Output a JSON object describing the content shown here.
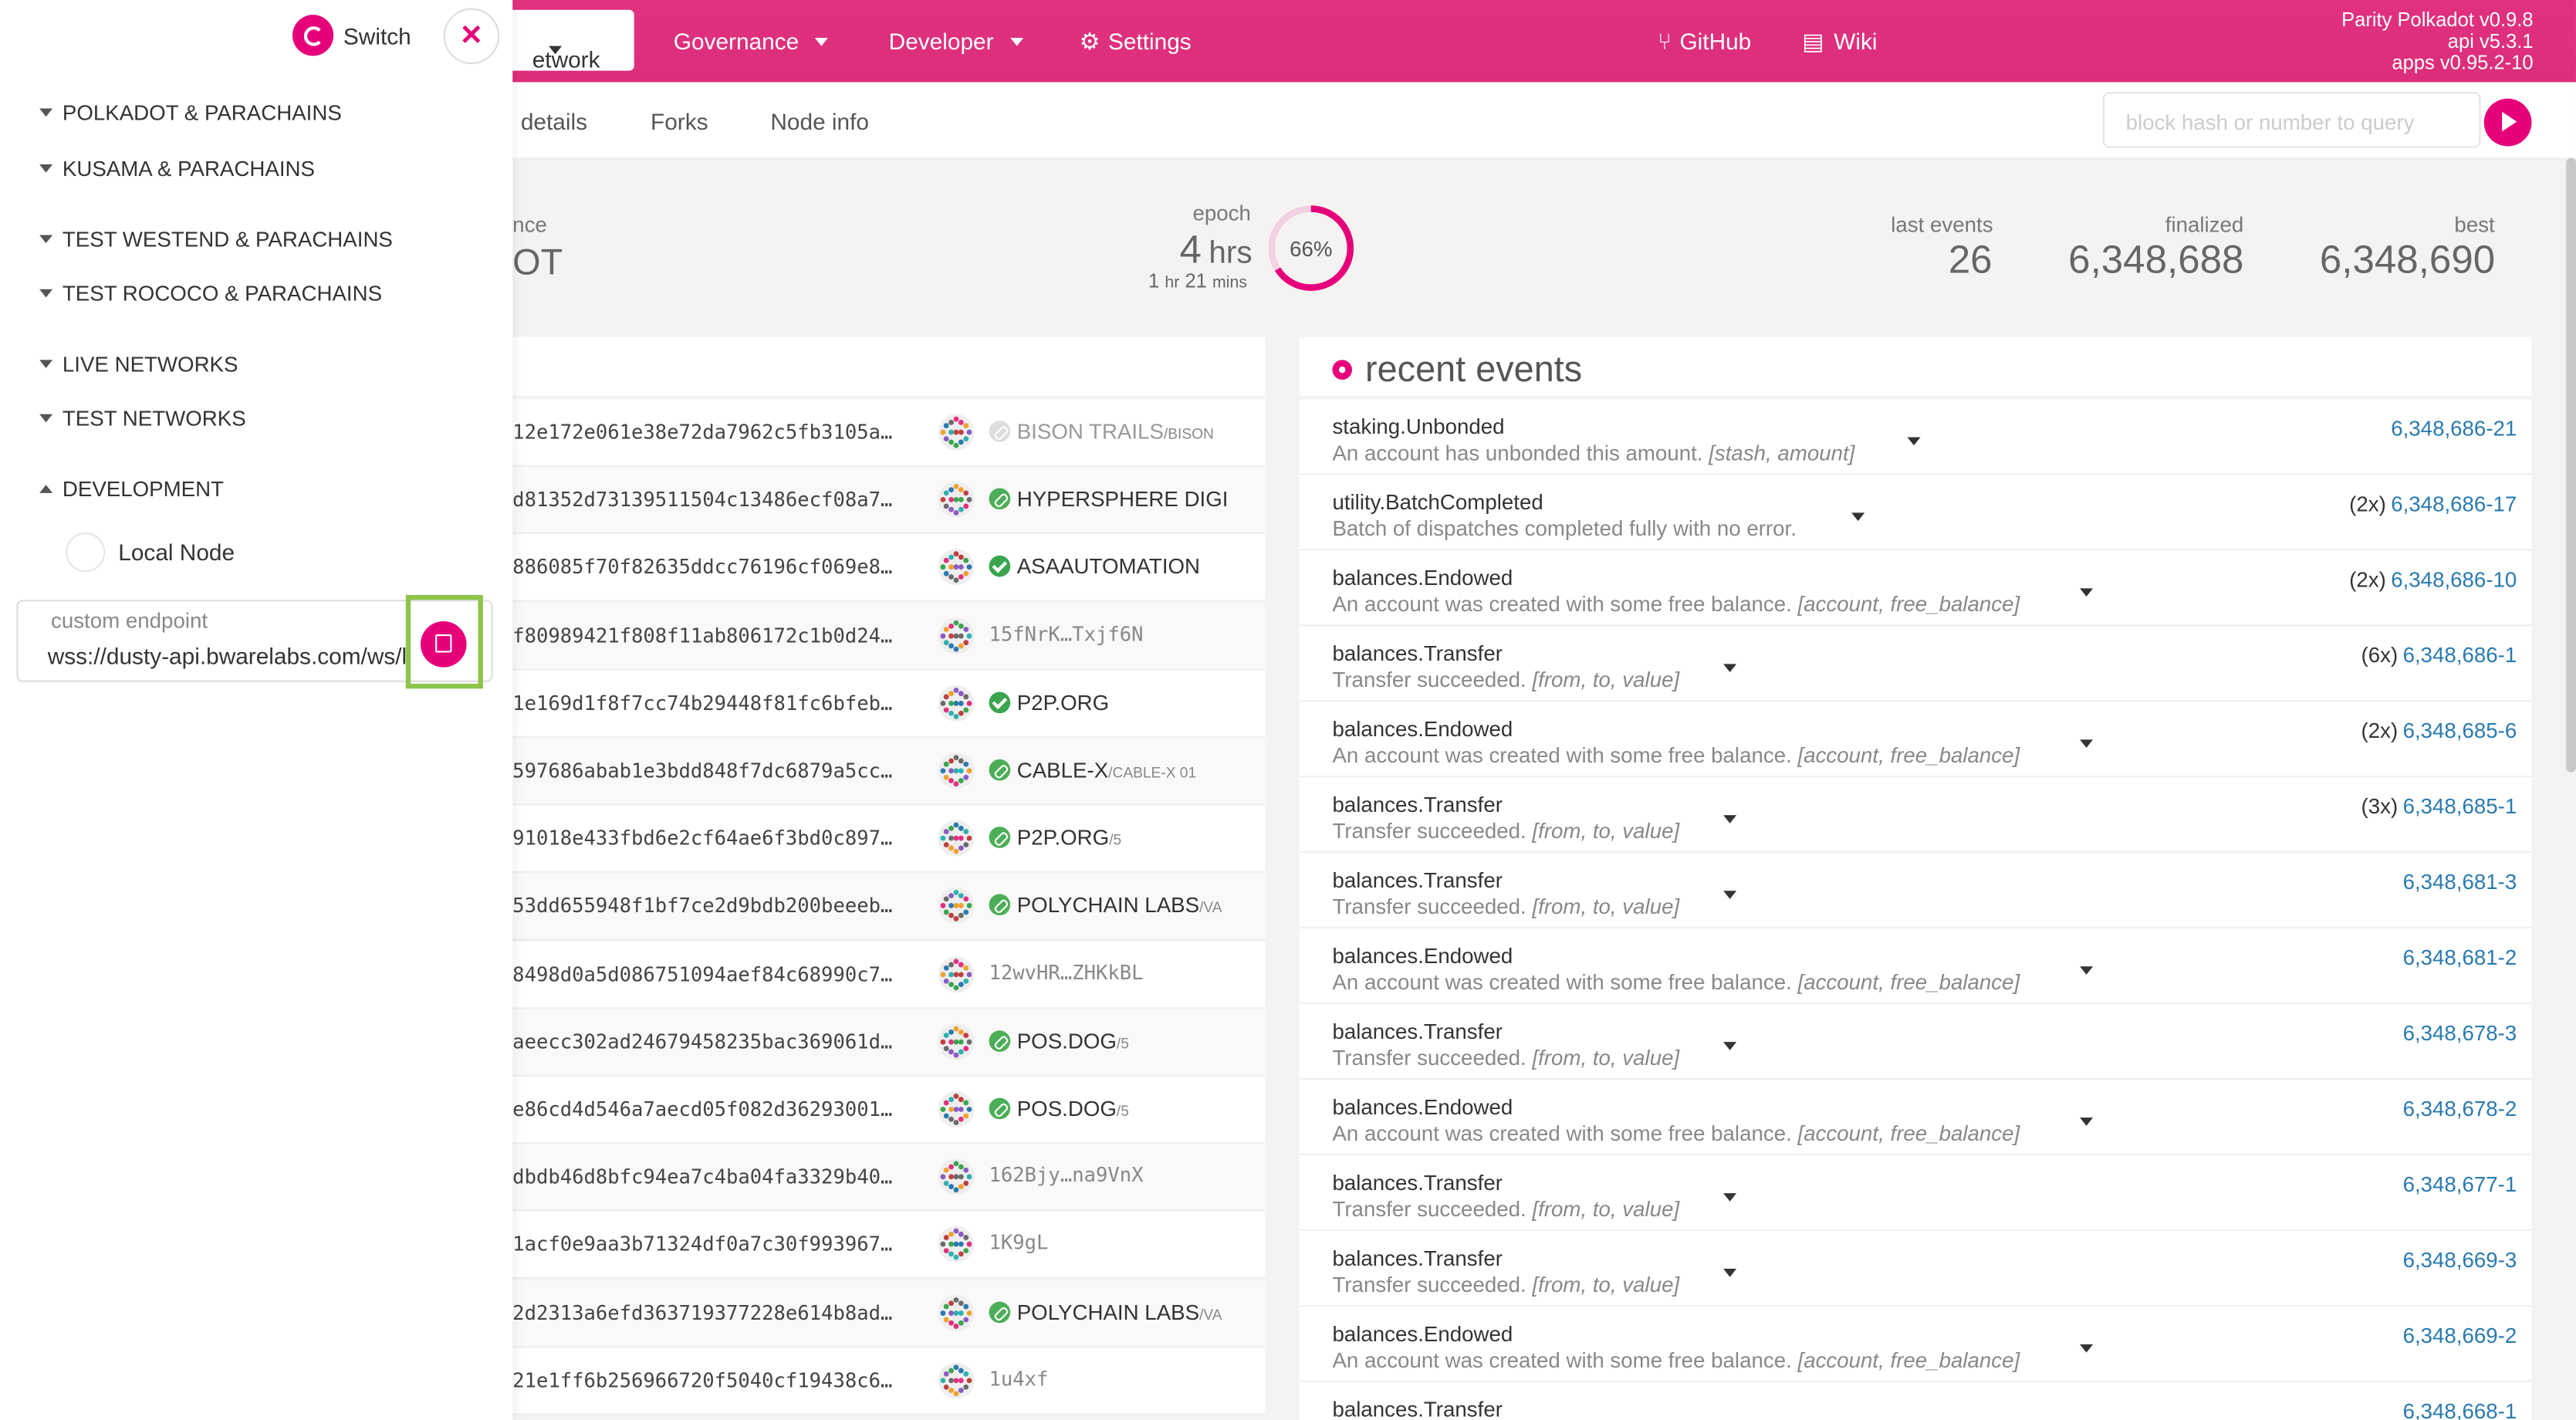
{
  "header": {
    "nav": [
      {
        "label": "etwork"
      },
      {
        "label": "Governance"
      },
      {
        "label": "Developer"
      },
      {
        "label": "Settings"
      },
      {
        "label": "GitHub"
      },
      {
        "label": "Wiki"
      }
    ],
    "version": [
      "Parity Polkadot v0.9.8",
      "api v5.3.1",
      "apps v0.95.2-10"
    ]
  },
  "subnav": {
    "tabs": [
      "details",
      "Forks",
      "Node info"
    ],
    "query_placeholder": "block hash or number to query"
  },
  "summary": {
    "left_label": "nce",
    "left_value": "OT",
    "epoch_label": "epoch",
    "epoch_value": "4",
    "epoch_unit": "hrs",
    "epoch_sub_1": "1",
    "epoch_sub_1u": "hr",
    "epoch_sub_2": "21",
    "epoch_sub_2u": "mins",
    "epoch_percent": 66,
    "epoch_percent_label": "66%",
    "last_events_label": "last events",
    "last_events_value": "26",
    "finalized_label": "finalized",
    "finalized_value": "6,348,688",
    "best_label": "best",
    "best_value": "6,348,690"
  },
  "blocks": [
    {
      "hash": "12e172e061e38e72da7962c5fb3105a…",
      "author": "BISON TRAILS",
      "sub": "/BISON",
      "ident": "grey"
    },
    {
      "hash": "d81352d73139511504c13486ecf08a7…",
      "author": "HYPERSPHERE DIGI",
      "sub": "",
      "ident": "link"
    },
    {
      "hash": "886085f70f82635ddcc76196cf069e8…",
      "author": "ASAAUTOMATION",
      "sub": "",
      "ident": "ok"
    },
    {
      "hash": "f80989421f808f11ab806172c1b0d24…",
      "author": "15fNrK…Txjf6N",
      "sub": "",
      "ident": "none"
    },
    {
      "hash": "1e169d1f8f7cc74b29448f81fc6bfeb…",
      "author": "P2P.ORG",
      "sub": "",
      "ident": "ok"
    },
    {
      "hash": "597686abab1e3bdd848f7dc6879a5cc…",
      "author": "CABLE-X",
      "sub": "/CABLE-X 01",
      "ident": "link"
    },
    {
      "hash": "91018e433fbd6e2cf64ae6f3bd0c897…",
      "author": "P2P.ORG",
      "sub": "/5",
      "ident": "link"
    },
    {
      "hash": "53dd655948f1bf7ce2d9bdb200beeeb…",
      "author": "POLYCHAIN LABS",
      "sub": "/VA",
      "ident": "link"
    },
    {
      "hash": "8498d0a5d086751094aef84c68990c7…",
      "author": "12wvHR…ZHKkBL",
      "sub": "",
      "ident": "none"
    },
    {
      "hash": "aeecc302ad24679458235bac369061d…",
      "author": "POS.DOG",
      "sub": "/5",
      "ident": "link"
    },
    {
      "hash": "e86cd4d546a7aecd05f082d36293001…",
      "author": "POS.DOG",
      "sub": "/5",
      "ident": "link"
    },
    {
      "hash": "dbdb46d8bfc94ea7c4ba04fa3329b40…",
      "author": "162Bjy…na9VnX",
      "sub": "",
      "ident": "none"
    },
    {
      "hash": "1acf0e9aa3b71324df0a7c30f993967…",
      "author": "1K9gL",
      "sub": "",
      "ident": "none"
    },
    {
      "hash": "2d2313a6efd363719377228e614b8ad…",
      "author": "POLYCHAIN LABS",
      "sub": "/VA",
      "ident": "link"
    },
    {
      "hash": "21e1ff6b256966720f5040cf19438c6…",
      "author": "1u4xf",
      "sub": "",
      "ident": "none"
    }
  ],
  "events_title": "recent events",
  "events": [
    {
      "name": "staking.Unbonded",
      "desc": "An account has unbonded this amount.",
      "args": "[stash, amount]",
      "count": "",
      "link": "6,348,686-21"
    },
    {
      "name": "utility.BatchCompleted",
      "desc": "Batch of dispatches completed fully with no error.",
      "args": "",
      "count": "(2x)",
      "link": "6,348,686-17"
    },
    {
      "name": "balances.Endowed",
      "desc": "An account was created with some free balance.",
      "args": "[account, free_balance]",
      "count": "(2x)",
      "link": "6,348,686-10"
    },
    {
      "name": "balances.Transfer",
      "desc": "Transfer succeeded.",
      "args": "[from, to, value]",
      "count": "(6x)",
      "link": "6,348,686-1"
    },
    {
      "name": "balances.Endowed",
      "desc": "An account was created with some free balance.",
      "args": "[account, free_balance]",
      "count": "(2x)",
      "link": "6,348,685-6"
    },
    {
      "name": "balances.Transfer",
      "desc": "Transfer succeeded.",
      "args": "[from, to, value]",
      "count": "(3x)",
      "link": "6,348,685-1"
    },
    {
      "name": "balances.Transfer",
      "desc": "Transfer succeeded.",
      "args": "[from, to, value]",
      "count": "",
      "link": "6,348,681-3"
    },
    {
      "name": "balances.Endowed",
      "desc": "An account was created with some free balance.",
      "args": "[account, free_balance]",
      "count": "",
      "link": "6,348,681-2"
    },
    {
      "name": "balances.Transfer",
      "desc": "Transfer succeeded.",
      "args": "[from, to, value]",
      "count": "",
      "link": "6,348,678-3"
    },
    {
      "name": "balances.Endowed",
      "desc": "An account was created with some free balance.",
      "args": "[account, free_balance]",
      "count": "",
      "link": "6,348,678-2"
    },
    {
      "name": "balances.Transfer",
      "desc": "Transfer succeeded.",
      "args": "[from, to, value]",
      "count": "",
      "link": "6,348,677-1"
    },
    {
      "name": "balances.Transfer",
      "desc": "Transfer succeeded.",
      "args": "[from, to, value]",
      "count": "",
      "link": "6,348,669-3"
    },
    {
      "name": "balances.Endowed",
      "desc": "An account was created with some free balance.",
      "args": "[account, free_balance]",
      "count": "",
      "link": "6,348,669-2"
    },
    {
      "name": "balances.Transfer",
      "desc": "",
      "args": "",
      "count": "",
      "link": "6,348,668-1"
    }
  ],
  "sidebar": {
    "switch_label": "Switch",
    "close_glyph": "✕",
    "groups": [
      {
        "label": "POLKADOT & PARACHAINS",
        "open": false
      },
      {
        "label": "KUSAMA & PARACHAINS",
        "open": false
      },
      {
        "label": "TEST WESTEND & PARACHAINS",
        "open": false
      },
      {
        "label": "TEST ROCOCO & PARACHAINS",
        "open": false
      },
      {
        "label": "LIVE NETWORKS",
        "open": false
      },
      {
        "label": "TEST NETWORKS",
        "open": false
      },
      {
        "label": "DEVELOPMENT",
        "open": true
      }
    ],
    "local_node": "Local Node",
    "endpoint_label": "custom endpoint",
    "endpoint_value": "wss://dusty-api.bwarelabs.com/ws/l"
  },
  "colors": {
    "accent": "#e6007a",
    "highlight": "#8dc44b",
    "link": "#2a7ab0"
  }
}
